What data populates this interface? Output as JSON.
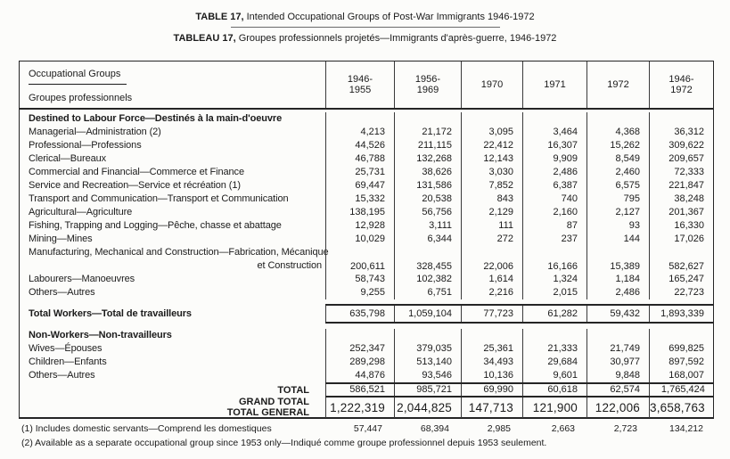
{
  "colors": {
    "paper": "#fcfcfa",
    "ink": "#1b1b1b",
    "line": "#3a3a3a",
    "heavy": "#252525"
  },
  "page": {
    "title_en_prefix": "TABLE 17,",
    "title_en_rest": " Intended Occupational Groups of Post-War Immigrants 1946-1972",
    "title_fr_prefix": "TABLEAU 17,",
    "title_fr_rest": " Groupes professionnels projetés—Immigrants d'après-guerre, 1946-1972"
  },
  "table": {
    "header": {
      "label_line1": "Occupational Groups",
      "label_line2": "Groupes professionnels",
      "columns": [
        "1946-\n1955",
        "1956-\n1969",
        "1970",
        "1971",
        "1972",
        "1946-\n1972"
      ]
    },
    "rows": [
      {
        "type": "section",
        "label": "Destined to Labour Force—Destinés à la main-d'oeuvre",
        "values": [
          "",
          "",
          "",
          "",
          "",
          ""
        ]
      },
      {
        "type": "data",
        "label": "Managerial—Administration (2)",
        "values": [
          "4,213",
          "21,172",
          "3,095",
          "3,464",
          "4,368",
          "36,312"
        ]
      },
      {
        "type": "data",
        "label": "Professional—Professions",
        "values": [
          "44,526",
          "211,115",
          "22,412",
          "16,307",
          "15,262",
          "309,622"
        ]
      },
      {
        "type": "data",
        "label": "Clerical—Bureaux",
        "values": [
          "46,788",
          "132,268",
          "12,143",
          "9,909",
          "8,549",
          "209,657"
        ]
      },
      {
        "type": "data",
        "label": "Commercial and Financial—Commerce et Finance",
        "values": [
          "25,731",
          "38,626",
          "3,030",
          "2,486",
          "2,460",
          "72,333"
        ]
      },
      {
        "type": "data",
        "label": "Service and Recreation—Service et récréation (1)",
        "values": [
          "69,447",
          "131,586",
          "7,852",
          "6,387",
          "6,575",
          "221,847"
        ]
      },
      {
        "type": "data",
        "label": "Transport and Communication—Transport et Communication",
        "values": [
          "15,332",
          "20,538",
          "843",
          "740",
          "795",
          "38,248"
        ]
      },
      {
        "type": "data",
        "label": "Agricultural—Agriculture",
        "values": [
          "138,195",
          "56,756",
          "2,129",
          "2,160",
          "2,127",
          "201,367"
        ]
      },
      {
        "type": "data",
        "label": "Fishing, Trapping and Logging—Pêche, chasse et abattage",
        "values": [
          "12,928",
          "3,111",
          "111",
          "87",
          "93",
          "16,330"
        ]
      },
      {
        "type": "data",
        "label": "Mining—Mines",
        "values": [
          "10,029",
          "6,344",
          "272",
          "237",
          "144",
          "17,026"
        ]
      },
      {
        "type": "data2",
        "label": "Manufacturing, Mechanical and Construction—Fabrication, Mécanique",
        "label2": "et Construction",
        "values": [
          "200,611",
          "328,455",
          "22,006",
          "16,166",
          "15,389",
          "582,627"
        ]
      },
      {
        "type": "data",
        "label": "Labourers—Manoeuvres",
        "values": [
          "58,743",
          "102,382",
          "1,614",
          "1,324",
          "1,184",
          "165,247"
        ]
      },
      {
        "type": "data",
        "label": "Others—Autres",
        "values": [
          "9,255",
          "6,751",
          "2,216",
          "2,015",
          "2,486",
          "22,723"
        ]
      },
      {
        "type": "totalworkers",
        "label": "Total Workers—Total de travailleurs",
        "values": [
          "635,798",
          "1,059,104",
          "77,723",
          "61,282",
          "59,432",
          "1,893,339"
        ]
      },
      {
        "type": "section2",
        "label": "Non-Workers—Non-travailleurs",
        "values": [
          "",
          "",
          "",
          "",
          "",
          ""
        ]
      },
      {
        "type": "data",
        "label": "Wives—Épouses",
        "values": [
          "252,347",
          "379,035",
          "25,361",
          "21,333",
          "21,749",
          "699,825"
        ]
      },
      {
        "type": "data",
        "label": "Children—Enfants",
        "values": [
          "289,298",
          "513,140",
          "34,493",
          "29,684",
          "30,977",
          "897,592"
        ]
      },
      {
        "type": "data",
        "label": "Others—Autres",
        "values": [
          "44,876",
          "93,546",
          "10,136",
          "9,601",
          "9,848",
          "168,007"
        ]
      }
    ],
    "total_block": {
      "labels": [
        "TOTAL",
        "GRAND TOTAL",
        "TOTAL GENERAL"
      ],
      "total_values": [
        "586,521",
        "985,721",
        "69,990",
        "60,618",
        "62,574",
        "1,765,424"
      ],
      "grand_values": [
        "1,222,319",
        "2,044,825",
        "147,713",
        "121,900",
        "122,006",
        "3,658,763"
      ]
    },
    "footnotes": [
      {
        "text": "(1) Includes domestic servants—Comprend les domestiques",
        "values": [
          "57,447",
          "68,394",
          "2,985",
          "2,663",
          "2,723",
          "134,212"
        ]
      },
      {
        "text": "(2) Available as a separate occupational group since 1953 only—Indiqué comme groupe professionnel depuis 1953 seulement.",
        "values": []
      }
    ]
  }
}
